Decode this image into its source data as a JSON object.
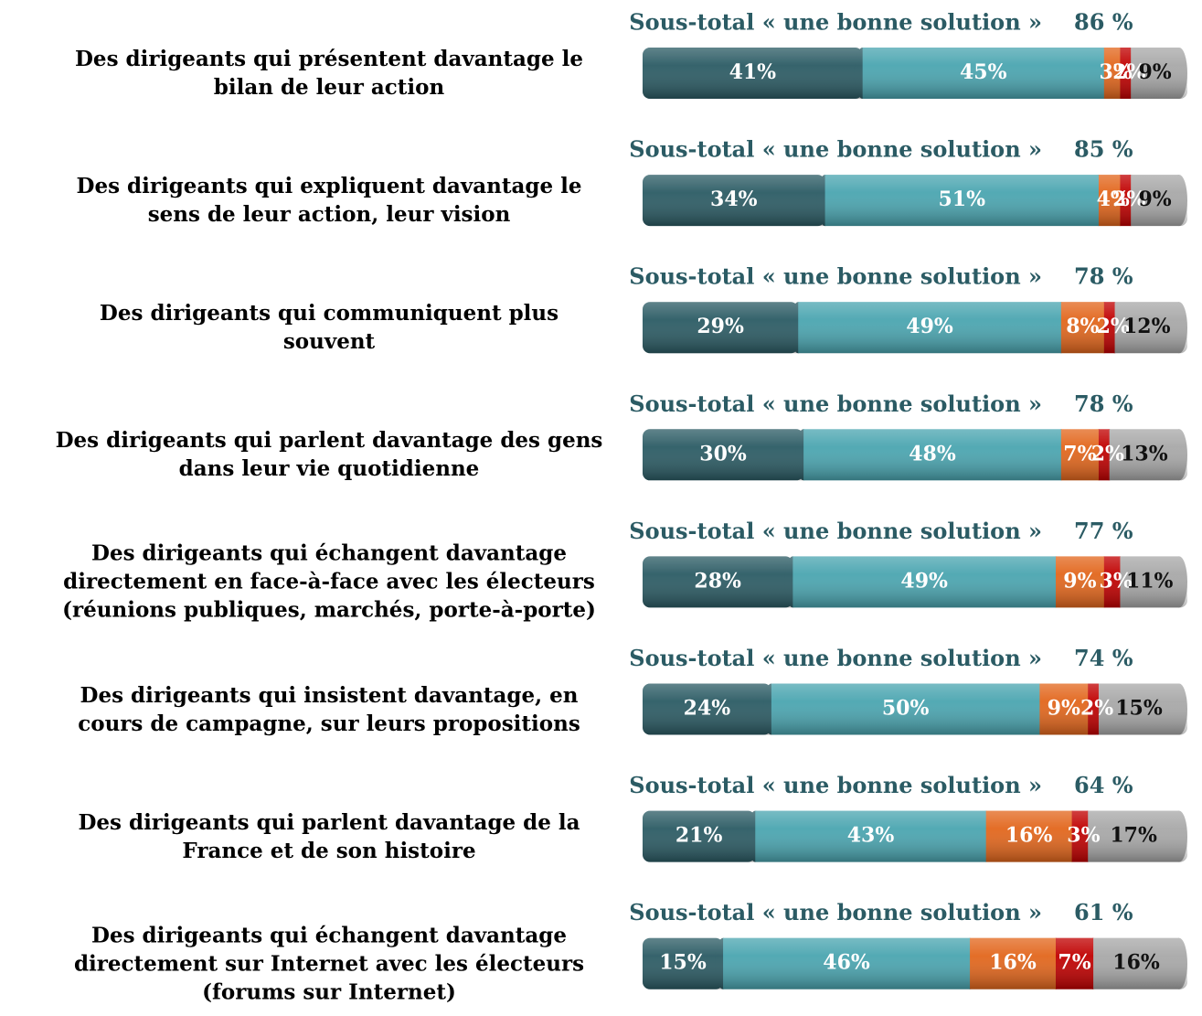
{
  "chart_data": {
    "type": "stacked_bar_horizontal",
    "categories": [
      "Des dirigeants qui présentent davantage le bilan de leur action",
      "Des dirigeants qui expliquent davantage le sens de leur action, leur vision",
      "Des dirigeants qui communiquent plus souvent",
      "Des dirigeants qui parlent davantage des gens dans leur vie quotidienne",
      "Des dirigeants qui échangent davantage directement en face-à-face avec les électeurs (réunions publiques, marchés, porte-à-porte)",
      "Des dirigeants qui insistent davantage, en cours de campagne, sur leurs propositions",
      "Des dirigeants qui parlent davantage de la France et de son histoire",
      "Des dirigeants qui échangent davantage directement sur Internet avec les électeurs (forums sur Internet)"
    ],
    "series": [
      {
        "color": "#2b5b64",
        "values": [
          41,
          34,
          29,
          30,
          28,
          24,
          21,
          15
        ],
        "value_labels": [
          "41%",
          "34%",
          "29%",
          "30%",
          "28%",
          "24%",
          "21%",
          "15%"
        ]
      },
      {
        "color": "#4aa5b0",
        "values": [
          45,
          51,
          49,
          48,
          49,
          50,
          43,
          46
        ],
        "value_labels": [
          "45%",
          "51%",
          "49%",
          "48%",
          "49%",
          "50%",
          "43%",
          "46%"
        ]
      },
      {
        "color": "#e2661c",
        "values": [
          3,
          4,
          8,
          7,
          9,
          9,
          16,
          16
        ],
        "value_labels": [
          "3%",
          "4%",
          "8%",
          "7%",
          "9%",
          "9%",
          "16%",
          "16%"
        ]
      },
      {
        "color": "#c00000",
        "values": [
          2,
          2,
          2,
          2,
          3,
          2,
          3,
          7
        ],
        "value_labels": [
          "2%",
          "2%",
          "2%",
          "2%",
          "3%",
          "2%",
          "3%",
          "7%"
        ]
      },
      {
        "color": "#a8a8a8",
        "values": [
          9,
          9,
          12,
          13,
          11,
          15,
          17,
          16
        ],
        "value_labels": [
          "9%",
          "9%",
          "12%",
          "13%",
          "11%",
          "15%",
          "17%",
          "16%"
        ]
      }
    ],
    "subtotal_text": "Sous-total « une bonne solution »",
    "subtotals": [
      86,
      85,
      78,
      78,
      77,
      74,
      64,
      61
    ],
    "subtotal_labels": [
      "86 %",
      "85 %",
      "78 %",
      "78 %",
      "77 %",
      "74 %",
      "64 %",
      "61 %"
    ],
    "xlim": [
      0,
      100
    ]
  }
}
